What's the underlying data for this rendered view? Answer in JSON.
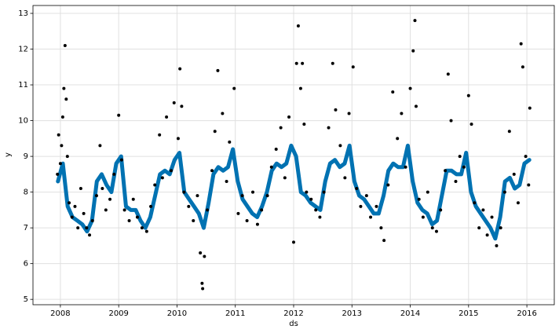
{
  "chart_data": {
    "type": "scatter",
    "x_label": "ds",
    "y_label": "y",
    "xlim": [
      2007.53,
      2016.47
    ],
    "ylim": [
      4.85,
      13.22
    ],
    "xticks": [
      2008,
      2009,
      2010,
      2011,
      2012,
      2013,
      2014,
      2015,
      2016
    ],
    "yticks": [
      5,
      6,
      7,
      8,
      9,
      10,
      11,
      12,
      13
    ],
    "grid": true,
    "series": [
      {
        "type": "line",
        "color": "#0072b2",
        "x": [
          2007.958,
          2008.042,
          2008.125,
          2008.208,
          2008.292,
          2008.375,
          2008.458,
          2008.542,
          2008.625,
          2008.708,
          2008.792,
          2008.875,
          2008.958,
          2009.042,
          2009.125,
          2009.208,
          2009.292,
          2009.375,
          2009.458,
          2009.542,
          2009.625,
          2009.708,
          2009.792,
          2009.875,
          2009.958,
          2010.042,
          2010.125,
          2010.208,
          2010.292,
          2010.375,
          2010.458,
          2010.542,
          2010.625,
          2010.708,
          2010.792,
          2010.875,
          2010.958,
          2011.042,
          2011.125,
          2011.208,
          2011.292,
          2011.375,
          2011.458,
          2011.542,
          2011.625,
          2011.708,
          2011.792,
          2011.875,
          2011.958,
          2012.042,
          2012.125,
          2012.208,
          2012.292,
          2012.375,
          2012.458,
          2012.542,
          2012.625,
          2012.708,
          2012.792,
          2012.875,
          2012.958,
          2013.042,
          2013.125,
          2013.208,
          2013.292,
          2013.375,
          2013.458,
          2013.542,
          2013.625,
          2013.708,
          2013.792,
          2013.875,
          2013.958,
          2014.042,
          2014.125,
          2014.208,
          2014.292,
          2014.375,
          2014.458,
          2014.542,
          2014.625,
          2014.708,
          2014.792,
          2014.875,
          2014.958,
          2015.042,
          2015.125,
          2015.208,
          2015.292,
          2015.375,
          2015.458,
          2015.542,
          2015.625,
          2015.708,
          2015.792,
          2015.875,
          2015.958,
          2016.042
        ],
        "values": [
          8.3,
          8.8,
          7.6,
          7.3,
          7.2,
          7.1,
          6.9,
          7.2,
          8.3,
          8.5,
          8.2,
          8.0,
          8.8,
          9.0,
          7.6,
          7.5,
          7.5,
          7.2,
          7.0,
          7.3,
          7.9,
          8.5,
          8.6,
          8.5,
          8.9,
          9.1,
          8.0,
          7.8,
          7.6,
          7.4,
          7.0,
          7.7,
          8.5,
          8.7,
          8.6,
          8.7,
          9.2,
          8.3,
          7.8,
          7.6,
          7.4,
          7.3,
          7.6,
          8.0,
          8.6,
          8.8,
          8.7,
          8.8,
          9.3,
          9.0,
          8.0,
          7.9,
          7.7,
          7.6,
          7.5,
          8.3,
          8.8,
          8.9,
          8.7,
          8.8,
          9.3,
          8.3,
          7.9,
          7.8,
          7.6,
          7.4,
          7.4,
          7.9,
          8.6,
          8.8,
          8.7,
          8.7,
          9.3,
          8.3,
          7.7,
          7.5,
          7.4,
          7.1,
          7.2,
          7.9,
          8.6,
          8.6,
          8.5,
          8.5,
          9.1,
          8.0,
          7.6,
          7.4,
          7.2,
          7.0,
          6.7,
          7.3,
          8.3,
          8.4,
          8.1,
          8.2,
          8.8,
          8.9
        ]
      },
      {
        "type": "scatter",
        "color": "#000000",
        "x": [
          2007.95,
          2007.97,
          2008.0,
          2008.02,
          2008.04,
          2008.06,
          2008.08,
          2008.1,
          2008.12,
          2008.15,
          2008.2,
          2008.25,
          2008.3,
          2008.35,
          2008.4,
          2008.45,
          2008.5,
          2008.55,
          2008.62,
          2008.68,
          2008.72,
          2008.78,
          2008.85,
          2008.92,
          2009.0,
          2009.05,
          2009.1,
          2009.18,
          2009.25,
          2009.32,
          2009.4,
          2009.48,
          2009.55,
          2009.62,
          2009.7,
          2009.75,
          2009.82,
          2009.9,
          2009.95,
          2010.02,
          2010.05,
          2010.08,
          2010.12,
          2010.2,
          2010.28,
          2010.35,
          2010.4,
          2010.43,
          2010.44,
          2010.47,
          2010.52,
          2010.6,
          2010.65,
          2010.7,
          2010.78,
          2010.85,
          2010.9,
          2010.98,
          2011.05,
          2011.12,
          2011.2,
          2011.3,
          2011.38,
          2011.45,
          2011.55,
          2011.62,
          2011.7,
          2011.78,
          2011.85,
          2011.92,
          2012.0,
          2012.05,
          2012.08,
          2012.12,
          2012.15,
          2012.18,
          2012.22,
          2012.3,
          2012.38,
          2012.45,
          2012.52,
          2012.6,
          2012.67,
          2012.72,
          2012.8,
          2012.88,
          2012.95,
          2013.02,
          2013.08,
          2013.15,
          2013.25,
          2013.32,
          2013.42,
          2013.5,
          2013.55,
          2013.62,
          2013.7,
          2013.78,
          2013.85,
          2013.92,
          2014.0,
          2014.05,
          2014.08,
          2014.1,
          2014.15,
          2014.22,
          2014.3,
          2014.38,
          2014.45,
          2014.52,
          2014.6,
          2014.65,
          2014.7,
          2014.78,
          2014.85,
          2014.92,
          2015.0,
          2015.05,
          2015.1,
          2015.18,
          2015.25,
          2015.32,
          2015.4,
          2015.48,
          2015.55,
          2015.62,
          2015.7,
          2015.78,
          2015.85,
          2015.9,
          2015.93,
          2015.98,
          2016.03,
          2016.05
        ],
        "values": [
          8.5,
          9.6,
          8.8,
          9.3,
          10.1,
          10.9,
          12.1,
          10.6,
          9.0,
          7.7,
          7.3,
          7.6,
          7.0,
          8.1,
          7.4,
          7.0,
          6.8,
          7.2,
          7.9,
          9.3,
          8.1,
          7.5,
          7.8,
          8.5,
          10.15,
          8.9,
          7.5,
          7.2,
          7.8,
          7.3,
          7.0,
          6.9,
          7.6,
          8.2,
          9.6,
          8.4,
          10.1,
          8.6,
          10.5,
          9.5,
          11.45,
          10.4,
          8.0,
          7.6,
          7.2,
          7.9,
          6.3,
          5.45,
          5.3,
          6.2,
          7.5,
          8.6,
          9.7,
          11.4,
          10.2,
          8.3,
          9.4,
          10.9,
          7.4,
          7.9,
          7.2,
          8.0,
          7.1,
          7.5,
          7.9,
          8.7,
          9.2,
          9.8,
          8.4,
          10.1,
          6.6,
          11.6,
          12.65,
          10.9,
          11.6,
          9.9,
          8.0,
          7.8,
          7.5,
          7.3,
          8.0,
          9.8,
          11.6,
          10.3,
          9.3,
          8.4,
          10.2,
          11.5,
          8.1,
          7.6,
          7.9,
          7.3,
          7.6,
          7.0,
          6.65,
          8.2,
          10.8,
          9.5,
          10.2,
          8.7,
          10.9,
          11.95,
          12.8,
          10.4,
          7.8,
          7.3,
          8.0,
          7.0,
          6.9,
          7.5,
          8.6,
          11.3,
          10.0,
          8.3,
          9.0,
          8.7,
          10.7,
          9.9,
          7.7,
          7.0,
          7.5,
          6.8,
          7.3,
          6.5,
          7.0,
          8.0,
          9.7,
          8.5,
          7.7,
          12.15,
          11.5,
          9.0,
          8.2,
          10.35
        ]
      }
    ]
  }
}
